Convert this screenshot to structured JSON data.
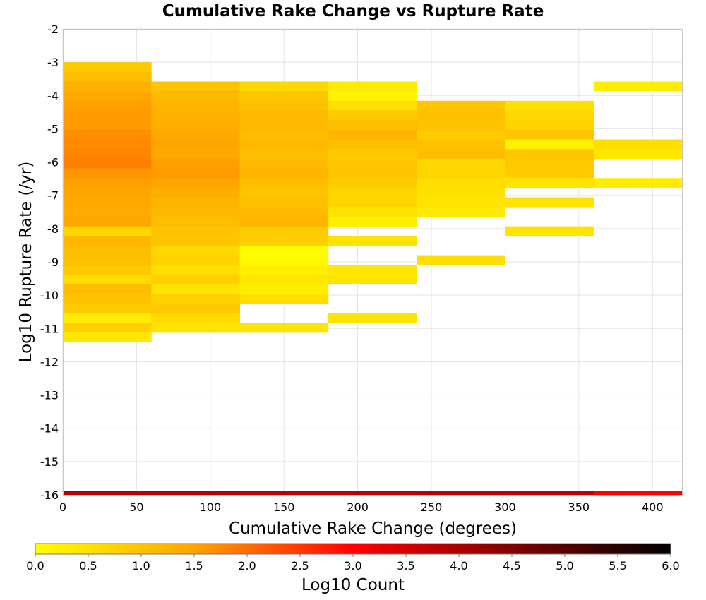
{
  "chart_data": {
    "type": "heatmap",
    "title": "Cumulative Rake Change vs Rupture Rate",
    "xlabel": "Cumulative Rake Change (degrees)",
    "ylabel": "Log10 Rupture Rate (/yr)",
    "xlim": [
      0,
      420
    ],
    "ylim": [
      -16,
      -2
    ],
    "x_ticks": [
      "0",
      "50",
      "100",
      "150",
      "200",
      "250",
      "300",
      "350",
      "400"
    ],
    "y_ticks": [
      "-2",
      "-3",
      "-4",
      "-5",
      "-6",
      "-7",
      "-8",
      "-9",
      "-10",
      "-11",
      "-12",
      "-13",
      "-14",
      "-15",
      "-16"
    ],
    "grid": true,
    "x_bin_width": 60,
    "y_bin_height": 0.29,
    "colorbar": {
      "label": "Log10 Count",
      "range": [
        0,
        6
      ],
      "ticks": [
        "0.0",
        "0.5",
        "1.0",
        "1.5",
        "2.0",
        "2.5",
        "3.0",
        "3.5",
        "4.0",
        "4.5",
        "5.0",
        "5.5",
        "6.0"
      ],
      "colors": [
        "#ffff00",
        "#ffa500",
        "#ff0000",
        "#800000",
        "#000000"
      ]
    },
    "columns": [
      {
        "x_start": 0,
        "cells": [
          [
            -3.0,
            0.9
          ],
          [
            -3.29,
            1.1
          ],
          [
            -3.58,
            1.3
          ],
          [
            -3.87,
            1.45
          ],
          [
            -4.16,
            1.55
          ],
          [
            -4.45,
            1.6
          ],
          [
            -4.74,
            1.6
          ],
          [
            -5.03,
            1.7
          ],
          [
            -5.32,
            1.75
          ],
          [
            -5.61,
            1.8
          ],
          [
            -5.9,
            1.85
          ],
          [
            -6.19,
            1.65
          ],
          [
            -6.48,
            1.55
          ],
          [
            -6.77,
            1.5
          ],
          [
            -7.06,
            1.45
          ],
          [
            -7.35,
            1.4
          ],
          [
            -7.64,
            1.5
          ],
          [
            -7.93,
            0.7
          ],
          [
            -8.22,
            1.2
          ],
          [
            -8.51,
            1.1
          ],
          [
            -8.8,
            1.05
          ],
          [
            -9.09,
            0.9
          ],
          [
            -9.38,
            0.6
          ],
          [
            -9.67,
            1.1
          ],
          [
            -9.96,
            1.0
          ],
          [
            -10.25,
            0.9
          ],
          [
            -10.54,
            0.35
          ],
          [
            -10.83,
            0.8
          ],
          [
            -11.12,
            0.4
          ]
        ]
      },
      {
        "x_start": 60,
        "cells": [
          [
            -3.58,
            1.0
          ],
          [
            -3.87,
            1.15
          ],
          [
            -4.16,
            1.25
          ],
          [
            -4.45,
            1.3
          ],
          [
            -4.74,
            1.35
          ],
          [
            -5.03,
            1.45
          ],
          [
            -5.32,
            1.5
          ],
          [
            -5.61,
            1.45
          ],
          [
            -5.9,
            1.55
          ],
          [
            -6.19,
            1.6
          ],
          [
            -6.48,
            1.5
          ],
          [
            -6.77,
            1.35
          ],
          [
            -7.06,
            1.25
          ],
          [
            -7.35,
            1.2
          ],
          [
            -7.64,
            1.1
          ],
          [
            -7.93,
            1.0
          ],
          [
            -8.22,
            0.95
          ],
          [
            -8.51,
            0.65
          ],
          [
            -8.8,
            0.75
          ],
          [
            -9.09,
            0.55
          ],
          [
            -9.38,
            0.8
          ],
          [
            -9.67,
            0.45
          ],
          [
            -9.96,
            0.75
          ],
          [
            -10.25,
            0.9
          ],
          [
            -10.54,
            0.6
          ],
          [
            -10.83,
            0.45
          ]
        ]
      },
      {
        "x_start": 120,
        "cells": [
          [
            -3.58,
            0.65
          ],
          [
            -3.87,
            0.95
          ],
          [
            -4.16,
            1.05
          ],
          [
            -4.45,
            1.15
          ],
          [
            -4.74,
            1.15
          ],
          [
            -5.03,
            1.1
          ],
          [
            -5.32,
            1.2
          ],
          [
            -5.61,
            1.1
          ],
          [
            -5.9,
            1.15
          ],
          [
            -6.19,
            1.25
          ],
          [
            -6.48,
            1.1
          ],
          [
            -6.77,
            1.0
          ],
          [
            -7.06,
            1.05
          ],
          [
            -7.35,
            1.15
          ],
          [
            -7.64,
            1.25
          ],
          [
            -7.93,
            0.85
          ],
          [
            -8.22,
            0.8
          ],
          [
            -8.51,
            0.05
          ],
          [
            -8.8,
            0.1
          ],
          [
            -9.09,
            0.25
          ],
          [
            -9.38,
            0.4
          ],
          [
            -9.67,
            0.3
          ],
          [
            -9.96,
            0.55
          ],
          [
            -10.83,
            0.45
          ]
        ]
      },
      {
        "x_start": 180,
        "cells": [
          [
            -3.58,
            0.35
          ],
          [
            -3.87,
            0.2
          ],
          [
            -4.16,
            0.55
          ],
          [
            -4.45,
            0.9
          ],
          [
            -4.74,
            1.1
          ],
          [
            -5.03,
            1.25
          ],
          [
            -5.32,
            1.05
          ],
          [
            -5.61,
            0.9
          ],
          [
            -5.9,
            0.95
          ],
          [
            -6.19,
            1.0
          ],
          [
            -6.48,
            0.85
          ],
          [
            -6.77,
            0.7
          ],
          [
            -7.06,
            0.7
          ],
          [
            -7.35,
            0.5
          ],
          [
            -7.64,
            0.25
          ],
          [
            -8.22,
            0.45
          ],
          [
            -9.09,
            0.4
          ],
          [
            -9.38,
            0.45
          ],
          [
            -10.54,
            0.45
          ]
        ]
      },
      {
        "x_start": 240,
        "cells": [
          [
            -4.16,
            0.95
          ],
          [
            -4.45,
            1.05
          ],
          [
            -4.74,
            1.0
          ],
          [
            -5.03,
            0.85
          ],
          [
            -5.32,
            1.05
          ],
          [
            -5.61,
            1.1
          ],
          [
            -5.9,
            0.65
          ],
          [
            -6.19,
            0.7
          ],
          [
            -6.48,
            0.55
          ],
          [
            -6.77,
            0.5
          ],
          [
            -7.06,
            0.45
          ],
          [
            -7.35,
            0.35
          ],
          [
            -8.8,
            0.55
          ]
        ]
      },
      {
        "x_start": 300,
        "cells": [
          [
            -4.16,
            0.55
          ],
          [
            -4.45,
            0.65
          ],
          [
            -4.74,
            0.75
          ],
          [
            -5.03,
            0.95
          ],
          [
            -5.32,
            0.25
          ],
          [
            -5.61,
            0.95
          ],
          [
            -5.9,
            0.9
          ],
          [
            -6.19,
            0.85
          ],
          [
            -6.48,
            0.45
          ],
          [
            -7.06,
            0.45
          ],
          [
            -7.93,
            0.45
          ]
        ]
      },
      {
        "x_start": 360,
        "cells": [
          [
            -3.58,
            0.3
          ],
          [
            -5.32,
            0.55
          ],
          [
            -5.61,
            0.4
          ],
          [
            -6.48,
            0.3
          ]
        ]
      }
    ],
    "bottom_strip": {
      "y": -16,
      "values": [
        3.9,
        3.9,
        3.85,
        3.85,
        3.8,
        3.75,
        3.0
      ]
    }
  }
}
